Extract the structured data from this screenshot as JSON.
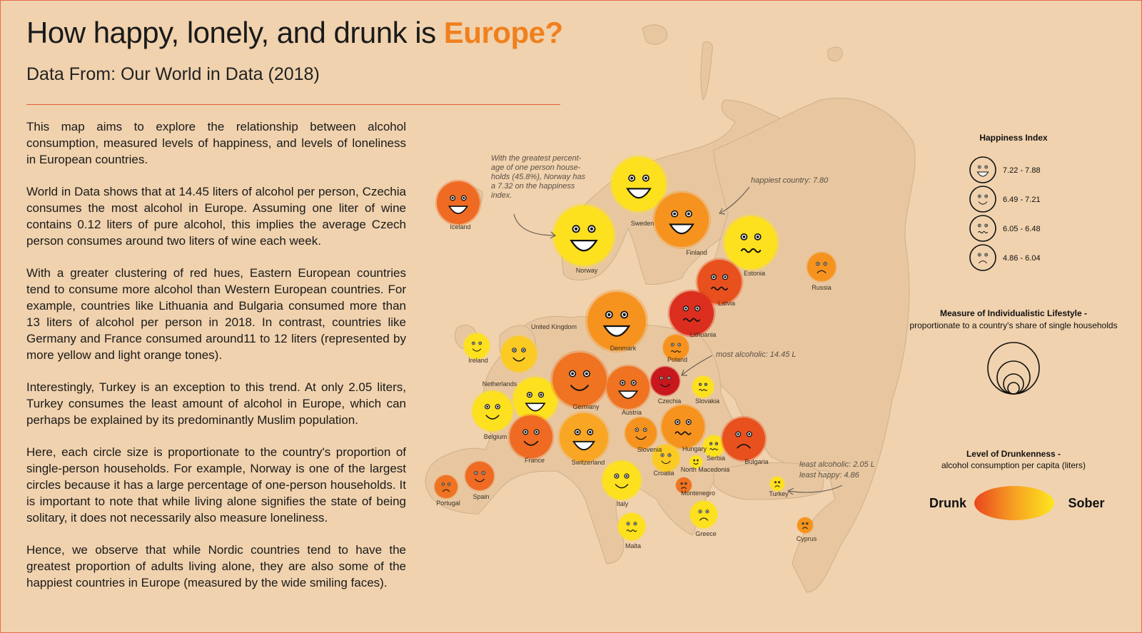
{
  "title": {
    "main": "How happy, lonely, and drunk is",
    "accent": "Europe?"
  },
  "subtitle": "Data From: Our World in Data (2018)",
  "paragraphs": [
    "This map aims to explore the relationship between alcohol consumption, measured levels of happiness, and levels of loneliness in European countries.",
    "World in Data shows that at 14.45 liters of alcohol per person, Czechia consumes the most alcohol in Europe. Assuming one liter of wine contains 0.12 liters of pure alcohol, this implies the average Czech person consumes around two liters of wine each week.",
    "With a greater clustering of red hues, Eastern European countries tend to consume more alcohol than Western European countries. For example, countries like Lithuania and Bulgaria consumed more than 13 liters of alcohol per person in 2018. In contrast, countries like Germany and France consumed around11 to 12 liters (represented by more yellow and light orange tones).",
    "Interestingly, Turkey is an exception to this trend. At only 2.05 liters, Turkey consumes the least amount of alcohol in Europe, which can perhaps be explained by its predominantly Muslim population.",
    "Here, each circle size is proportionate to the country's proportion of single-person households. For example, Norway is one of the largest circles because it has a large percentage of one-person households. It is important to note that while living alone signifies the state of being solitary, it does not necessarily also measure loneliness.",
    "Hence, we observe that while Nordic countries tend to have the greatest proportion of adults living alone, they are also some of the happiest countries in Europe (measured by the wide smiling faces)."
  ],
  "countries": [
    {
      "name": "Iceland",
      "fill": "#ef6a22",
      "mood": "big"
    },
    {
      "name": "Norway",
      "fill": "#fde11e",
      "mood": "big"
    },
    {
      "name": "Sweden",
      "fill": "#fde11e",
      "mood": "big"
    },
    {
      "name": "Finland",
      "fill": "#f5931e",
      "mood": "big"
    },
    {
      "name": "Estonia",
      "fill": "#fde11e",
      "mood": "wavy"
    },
    {
      "name": "Russia",
      "fill": "#f5931e",
      "mood": "frown"
    },
    {
      "name": "Latvia",
      "fill": "#e8501e",
      "mood": "wavy"
    },
    {
      "name": "Lithuania",
      "fill": "#db2e1e",
      "mood": "wavy"
    },
    {
      "name": "Denmark",
      "fill": "#f5931e",
      "mood": "big"
    },
    {
      "name": "United Kingdom",
      "fill": "#fbcb24",
      "mood": "smile"
    },
    {
      "name": "Ireland",
      "fill": "#fde11e",
      "mood": "smile"
    },
    {
      "name": "Poland",
      "fill": "#f5931e",
      "mood": "wavy"
    },
    {
      "name": "Netherlands",
      "fill": "#fde11e",
      "mood": "big"
    },
    {
      "name": "Germany",
      "fill": "#ef7321",
      "mood": "smile"
    },
    {
      "name": "Czechia",
      "fill": "#c8181e",
      "mood": "smile"
    },
    {
      "name": "Slovakia",
      "fill": "#fde11e",
      "mood": "wavy"
    },
    {
      "name": "Austria",
      "fill": "#ef7321",
      "mood": "big"
    },
    {
      "name": "Belgium",
      "fill": "#fde11e",
      "mood": "smile"
    },
    {
      "name": "France",
      "fill": "#ef6a22",
      "mood": "smile"
    },
    {
      "name": "Switzerland",
      "fill": "#f8a624",
      "mood": "big"
    },
    {
      "name": "Slovenia",
      "fill": "#f5931e",
      "mood": "smile"
    },
    {
      "name": "Hungary",
      "fill": "#f5931e",
      "mood": "wavy"
    },
    {
      "name": "Croatia",
      "fill": "#fbcb24",
      "mood": "smile"
    },
    {
      "name": "Serbia",
      "fill": "#fde11e",
      "mood": "wavy"
    },
    {
      "name": "Bulgaria",
      "fill": "#e8501e",
      "mood": "frown"
    },
    {
      "name": "North Macedonia",
      "fill": "#fde11e",
      "mood": "smile"
    },
    {
      "name": "Montenegro",
      "fill": "#ef7321",
      "mood": "frown"
    },
    {
      "name": "Italy",
      "fill": "#fde11e",
      "mood": "smile"
    },
    {
      "name": "Spain",
      "fill": "#ef6a22",
      "mood": "smile"
    },
    {
      "name": "Portugal",
      "fill": "#ef7321",
      "mood": "frown"
    },
    {
      "name": "Malta",
      "fill": "#fde11e",
      "mood": "wavy"
    },
    {
      "name": "Greece",
      "fill": "#fde11e",
      "mood": "frown"
    },
    {
      "name": "Turkey",
      "fill": "#fde11e",
      "mood": "frown"
    },
    {
      "name": "Cyprus",
      "fill": "#f5931e",
      "mood": "frown"
    }
  ],
  "annotations": {
    "norway": "With the greatest percentage of one person households (45.8%), Norway has a 7.32 on the happiness index.",
    "happiest": "happiest country: 7.80",
    "most_alcoholic": "most alcoholic: 14.45 L",
    "least": "least alcoholic: 2.05 L\nleast happy: 4.86"
  },
  "legend": {
    "happiness_title": "Happiness Index",
    "happiness_items": [
      {
        "range": "7.22 - 7.88",
        "mood": "big"
      },
      {
        "range": "6.49 - 7.21",
        "mood": "smile"
      },
      {
        "range": "6.05 - 6.48",
        "mood": "wavy"
      },
      {
        "range": "4.86 - 6.04",
        "mood": "frown"
      }
    ],
    "individualism_title": "Measure of Individualistic Lifestyle -",
    "individualism_sub": "proportionate to a country's share of single households",
    "drunk_title": "Level of Drunkenness -",
    "drunk_sub": "alcohol consumption per capita (liters)",
    "drunk_label": "Drunk",
    "sober_label": "Sober"
  }
}
